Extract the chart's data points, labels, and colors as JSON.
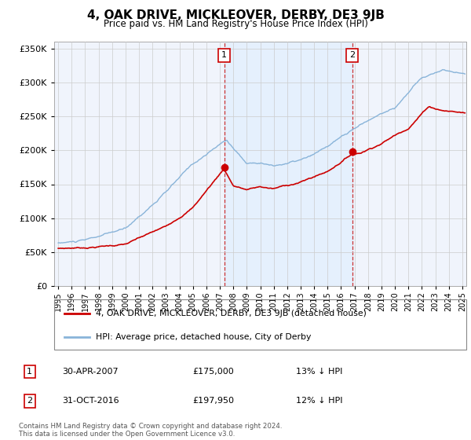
{
  "title": "4, OAK DRIVE, MICKLEOVER, DERBY, DE3 9JB",
  "subtitle": "Price paid vs. HM Land Registry's House Price Index (HPI)",
  "ylim": [
    0,
    360000
  ],
  "xlim_start": 1994.7,
  "xlim_end": 2025.3,
  "sale1_x": 2007.33,
  "sale1_y": 175000,
  "sale1_label": "1",
  "sale1_date": "30-APR-2007",
  "sale1_price": "£175,000",
  "sale1_hpi": "13% ↓ HPI",
  "sale2_x": 2016.83,
  "sale2_y": 197950,
  "sale2_label": "2",
  "sale2_date": "31-OCT-2016",
  "sale2_price": "£197,950",
  "sale2_hpi": "12% ↓ HPI",
  "red_color": "#cc0000",
  "blue_color": "#89b4d9",
  "shade_color": "#ddeeff",
  "vline_color": "#cc3333",
  "grid_color": "#cccccc",
  "plot_bg": "#f0f4fc",
  "legend_line1": "4, OAK DRIVE, MICKLEOVER, DERBY, DE3 9JB (detached house)",
  "legend_line2": "HPI: Average price, detached house, City of Derby",
  "copyright": "Contains HM Land Registry data © Crown copyright and database right 2024.\nThis data is licensed under the Open Government Licence v3.0."
}
